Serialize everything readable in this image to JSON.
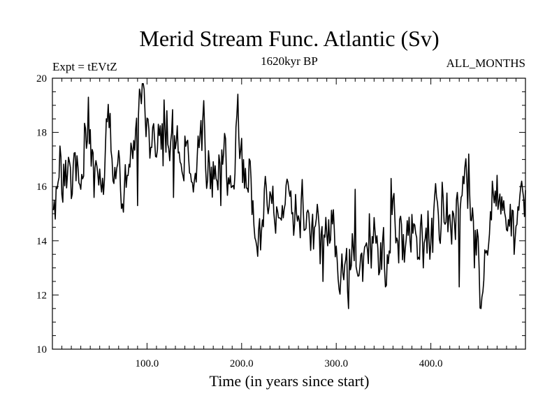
{
  "header": {
    "title": "Merid Stream Func. Atlantic (Sv)",
    "expt": "Expt = tEVtZ",
    "subtitle": "1620kyr BP",
    "months": "ALL_MONTHS"
  },
  "colors": {
    "line": "#000000",
    "background": "#ffffff"
  },
  "chart_data": {
    "type": "line",
    "title": "Merid Stream Func. Atlantic (Sv)",
    "xlabel": "Time (in years since start)",
    "ylabel": "",
    "xlim": [
      0,
      500
    ],
    "ylim": [
      10,
      20
    ],
    "x_tick_labels": [
      "100.0",
      "200.0",
      "300.0",
      "400.0"
    ],
    "x_ticks": [
      100,
      200,
      300,
      400
    ],
    "y_tick_labels": [
      "10",
      "12",
      "14",
      "16",
      "18",
      "20"
    ],
    "y_ticks": [
      10,
      12,
      14,
      16,
      18,
      20
    ],
    "grid": false,
    "series": [
      {
        "name": "Merid Stream Func. Atlantic",
        "anchors": [
          [
            1,
            15.6
          ],
          [
            3,
            14.3
          ],
          [
            5,
            16.2
          ],
          [
            10,
            16.4
          ],
          [
            20,
            16.3
          ],
          [
            30,
            16.8
          ],
          [
            35,
            17.6
          ],
          [
            40,
            16.9
          ],
          [
            50,
            16.0
          ],
          [
            55,
            16.8
          ],
          [
            58,
            18.7
          ],
          [
            62,
            17.9
          ],
          [
            70,
            16.6
          ],
          [
            80,
            16.3
          ],
          [
            90,
            17.7
          ],
          [
            94,
            19.4
          ],
          [
            100,
            17.3
          ],
          [
            110,
            17.6
          ],
          [
            120,
            17.6
          ],
          [
            130,
            17.8
          ],
          [
            140,
            17.3
          ],
          [
            155,
            17.2
          ],
          [
            160,
            18.7
          ],
          [
            165,
            16.2
          ],
          [
            170,
            16.6
          ],
          [
            185,
            16.8
          ],
          [
            192,
            16.5
          ],
          [
            196,
            18.3
          ],
          [
            200,
            16.6
          ],
          [
            210,
            16.2
          ],
          [
            218,
            14.4
          ],
          [
            225,
            15.2
          ],
          [
            235,
            15.4
          ],
          [
            245,
            14.9
          ],
          [
            255,
            15.2
          ],
          [
            265,
            15.0
          ],
          [
            275,
            14.2
          ],
          [
            282,
            13.8
          ],
          [
            290,
            14.6
          ],
          [
            298,
            13.9
          ],
          [
            306,
            13.6
          ],
          [
            313,
            12.8
          ],
          [
            318,
            13.9
          ],
          [
            325,
            13.6
          ],
          [
            330,
            13.7
          ],
          [
            335,
            14.3
          ],
          [
            345,
            13.8
          ],
          [
            352,
            13.3
          ],
          [
            358,
            14.8
          ],
          [
            362,
            15.1
          ],
          [
            370,
            14.1
          ],
          [
            375,
            13.8
          ],
          [
            385,
            14.3
          ],
          [
            395,
            14.4
          ],
          [
            405,
            14.7
          ],
          [
            415,
            15.0
          ],
          [
            425,
            14.6
          ],
          [
            432,
            15.7
          ],
          [
            437,
            16.8
          ],
          [
            442,
            15.2
          ],
          [
            448,
            13.5
          ],
          [
            452,
            12.2
          ],
          [
            458,
            14.1
          ],
          [
            466,
            15.4
          ],
          [
            475,
            15.0
          ],
          [
            485,
            14.4
          ],
          [
            492,
            15.2
          ],
          [
            498,
            15.3
          ]
        ],
        "spikes": [
          [
            38,
            19.3
          ],
          [
            44,
            15.6
          ],
          [
            92,
            19.6
          ],
          [
            90,
            15.3
          ],
          [
            118,
            19.2
          ],
          [
            128,
            15.6
          ],
          [
            149,
            15.8
          ],
          [
            178,
            15.3
          ],
          [
            215,
            14.0
          ],
          [
            226,
            16.0
          ],
          [
            255,
            14.2
          ],
          [
            286,
            12.5
          ],
          [
            303,
            12.2
          ],
          [
            313,
            11.5
          ],
          [
            320,
            15.9
          ],
          [
            328,
            12.5
          ],
          [
            335,
            15.0
          ],
          [
            352,
            12.3
          ],
          [
            358,
            16.3
          ],
          [
            370,
            13.3
          ],
          [
            392,
            13.0
          ],
          [
            430,
            12.3
          ],
          [
            440,
            17.2
          ],
          [
            446,
            13.0
          ],
          [
            453,
            11.5
          ],
          [
            465,
            16.2
          ],
          [
            488,
            13.5
          ],
          [
            496,
            16.2
          ]
        ],
        "seed": 1620
      }
    ]
  }
}
